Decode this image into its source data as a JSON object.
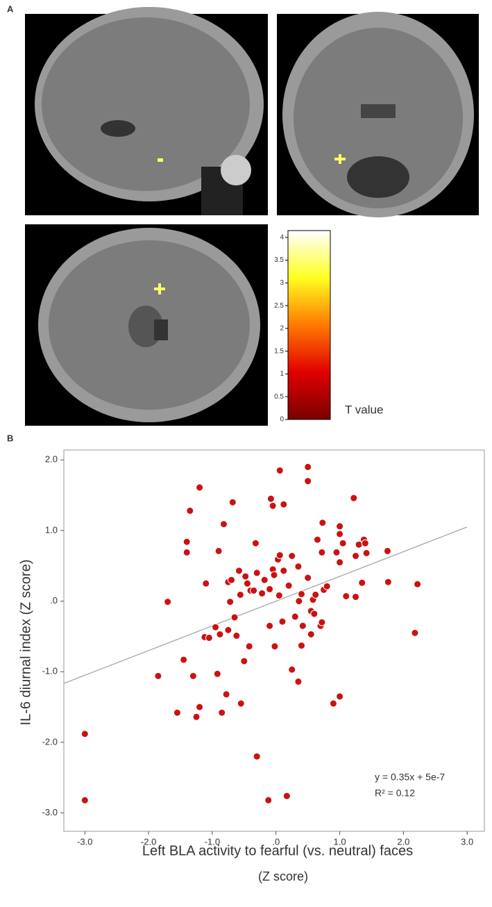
{
  "panel_labels": [
    "A",
    "B"
  ],
  "chart_data": [
    {
      "type": "colorbar",
      "label": "T value",
      "colors": [
        "#7a0000",
        "#e00000",
        "#ff7a00",
        "#ffff20",
        "#ffffff"
      ],
      "ylim": [
        0,
        4.15
      ],
      "yticks": [
        0,
        0.5,
        1,
        1.5,
        2,
        2.5,
        3,
        3.5,
        4
      ]
    },
    {
      "type": "scatter",
      "xlabel": [
        "Left BLA activity to fearful (vs. neutral) faces",
        "(Z score)"
      ],
      "ylabel": "IL-6 diurnal index  (Z score)",
      "color": "#cc1111",
      "line_color": "#b0b0b0",
      "xlim": [
        -3.33,
        3.27
      ],
      "ylim": [
        -3.26,
        2.14
      ],
      "xticks": [
        {
          "value": -3,
          "label": "-3.0"
        },
        {
          "value": -2,
          "label": "-2.0"
        },
        {
          "value": -1,
          "label": "-1.0"
        },
        {
          "value": 0,
          "label": ".0"
        },
        {
          "value": 1,
          "label": "1.0"
        },
        {
          "value": 2,
          "label": "2.0"
        },
        {
          "value": 3,
          "label": "3.0"
        }
      ],
      "yticks": [
        {
          "value": -3,
          "label": "-3.0"
        },
        {
          "value": -2,
          "label": "-2.0"
        },
        {
          "value": -1,
          "label": "-1.0"
        },
        {
          "value": 0,
          "label": ".0"
        },
        {
          "value": 1,
          "label": "1.0"
        },
        {
          "value": 2,
          "label": "2.0"
        }
      ],
      "trendline": {
        "slope": 0.35,
        "intercept": 5e-07
      },
      "annotations": [
        "y = 0.35x + 5e-7",
        "R² = 0.12"
      ],
      "x": [
        -3.0,
        -3.0,
        -1.85,
        -1.7,
        -1.55,
        -1.45,
        -1.4,
        -1.4,
        -1.35,
        -1.3,
        -1.25,
        -1.2,
        -1.2,
        -1.12,
        -1.1,
        -1.05,
        -0.95,
        -0.92,
        -0.9,
        -0.88,
        -0.85,
        -0.82,
        -0.78,
        -0.75,
        -0.75,
        -0.72,
        -0.7,
        -0.68,
        -0.65,
        -0.62,
        -0.58,
        -0.56,
        -0.55,
        -0.5,
        -0.48,
        -0.45,
        -0.42,
        -0.4,
        -0.35,
        -0.32,
        -0.3,
        -0.3,
        -0.22,
        -0.18,
        -0.1,
        -0.1,
        -0.12,
        -0.08,
        -0.05,
        -0.05,
        -0.03,
        -0.02,
        0.03,
        0.05,
        0.06,
        0.06,
        0.1,
        0.12,
        0.12,
        0.17,
        0.2,
        0.25,
        0.25,
        0.3,
        0.35,
        0.35,
        0.36,
        0.4,
        0.4,
        0.42,
        0.5,
        0.5,
        0.5,
        0.55,
        0.55,
        0.58,
        0.6,
        0.62,
        0.65,
        0.7,
        0.72,
        0.72,
        0.73,
        0.75,
        0.8,
        0.9,
        0.95,
        1.0,
        1.0,
        1.0,
        1.0,
        1.05,
        1.1,
        1.22,
        1.25,
        1.25,
        1.3,
        1.35,
        1.38,
        1.4,
        1.42,
        1.75,
        1.76,
        2.18,
        2.22
      ],
      "y": [
        -1.88,
        -2.82,
        -1.06,
        -0.01,
        -1.58,
        -0.83,
        0.84,
        0.69,
        1.28,
        -1.06,
        -1.64,
        -1.5,
        1.61,
        -0.51,
        0.25,
        -0.52,
        -0.37,
        -1.03,
        0.71,
        -0.47,
        -1.58,
        1.09,
        -1.32,
        -0.41,
        0.27,
        -0.01,
        0.3,
        1.4,
        -0.23,
        -0.49,
        0.43,
        0.09,
        -1.45,
        -0.85,
        0.35,
        0.25,
        -0.64,
        0.15,
        0.15,
        0.82,
        -2.2,
        0.4,
        0.11,
        0.3,
        -0.35,
        0.17,
        -2.82,
        1.45,
        1.35,
        0.45,
        0.37,
        -0.64,
        0.59,
        0.08,
        1.85,
        0.65,
        -0.29,
        1.37,
        0.43,
        -2.76,
        0.22,
        -0.97,
        0.64,
        -0.22,
        -1.14,
        0.49,
        0.0,
        -0.63,
        0.1,
        -0.35,
        1.9,
        1.7,
        0.33,
        -0.14,
        -0.47,
        0.02,
        -0.18,
        0.09,
        0.87,
        -0.35,
        -0.3,
        0.69,
        1.11,
        0.16,
        0.21,
        -1.45,
        0.69,
        1.06,
        0.95,
        0.55,
        -1.35,
        0.82,
        0.07,
        1.46,
        0.06,
        0.64,
        0.8,
        0.26,
        0.87,
        0.82,
        0.68,
        0.71,
        0.27,
        -0.45,
        0.24
      ]
    }
  ]
}
